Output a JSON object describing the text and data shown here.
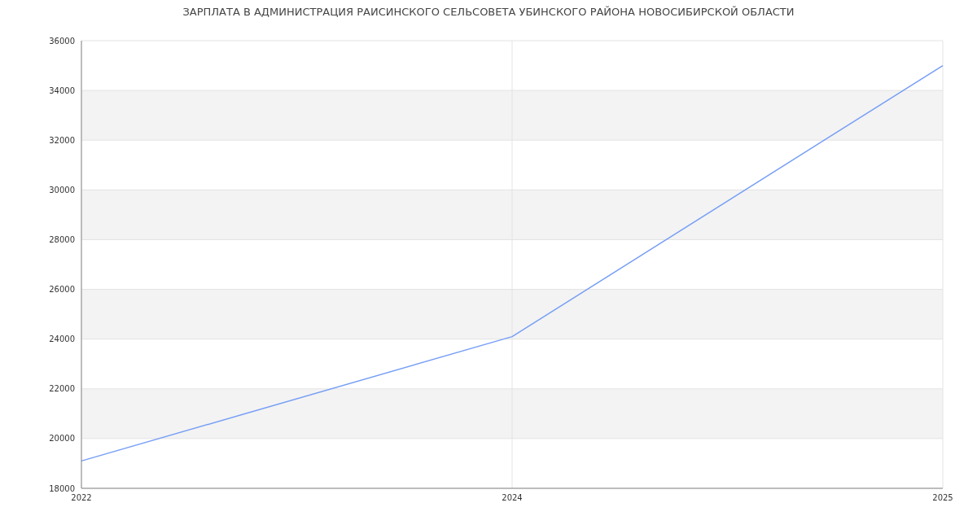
{
  "chart_data": {
    "type": "line",
    "title": "ЗАРПЛАТА В АДМИНИСТРАЦИЯ РАИСИНСКОГО СЕЛЬСОВЕТА УБИНСКОГО РАЙОНА НОВОСИБИРСКОЙ ОБЛАСТИ",
    "categories": [
      "2022",
      "2024",
      "2025"
    ],
    "series": [
      {
        "color": "#769ef5",
        "values": [
          19100,
          24100,
          35000
        ]
      }
    ],
    "ylim": [
      18000,
      36000
    ],
    "yticks": [
      18000,
      20000,
      22000,
      24000,
      26000,
      28000,
      30000,
      32000,
      34000,
      36000
    ],
    "grid": true,
    "marker": "none",
    "line_style": "solid"
  }
}
